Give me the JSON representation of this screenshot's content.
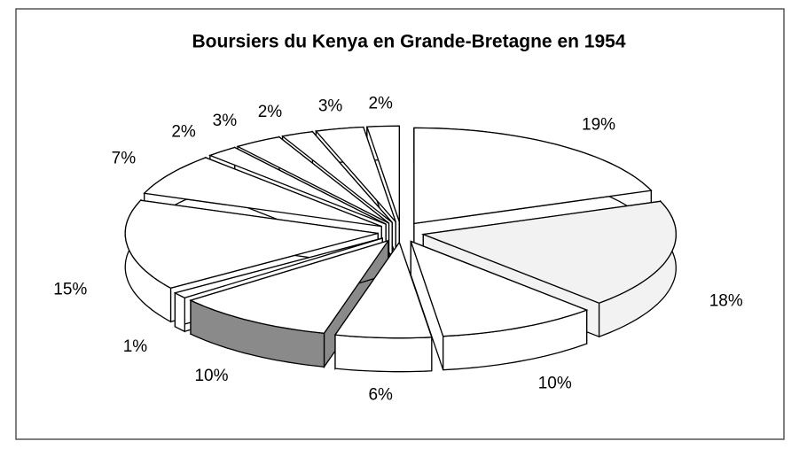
{
  "chart_data": {
    "type": "pie",
    "title": "Boursiers du Kenya en Grande-Bretagne en 1954",
    "values": [
      19,
      18,
      10,
      6,
      10,
      1,
      15,
      7,
      2,
      3,
      2,
      3,
      2
    ],
    "value_labels": [
      "19%",
      "18%",
      "10%",
      "6%",
      "10%",
      "1%",
      "15%",
      "7%",
      "2%",
      "3%",
      "2%",
      "3%",
      "2%"
    ],
    "colors": [
      "#ffffff",
      "#f2f2f2",
      "#ffffff",
      "#ffffff",
      "#8a8a8a",
      "#ffffff",
      "#ffffff",
      "#ffffff",
      "#ffffff",
      "#ffffff",
      "#ffffff",
      "#ffffff",
      "#ffffff"
    ]
  }
}
